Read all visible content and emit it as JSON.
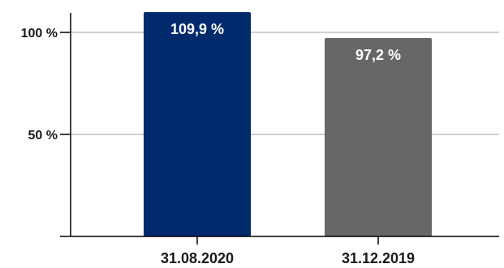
{
  "chart_data": {
    "type": "bar",
    "categories": [
      "31.08.2020",
      "31.12.2019"
    ],
    "values": [
      109.9,
      97.2
    ],
    "value_labels": [
      "109,9 %",
      "97,2 %"
    ],
    "colors": [
      "#002a6c",
      "#676767"
    ],
    "ylim": [
      0,
      110
    ],
    "y_ticks": [
      {
        "value": 100,
        "label": "100 %"
      },
      {
        "value": 50,
        "label": "50 %"
      }
    ],
    "grid": true,
    "gridline_color": "#b3b3b3",
    "title": "",
    "xlabel": "",
    "ylabel": ""
  }
}
